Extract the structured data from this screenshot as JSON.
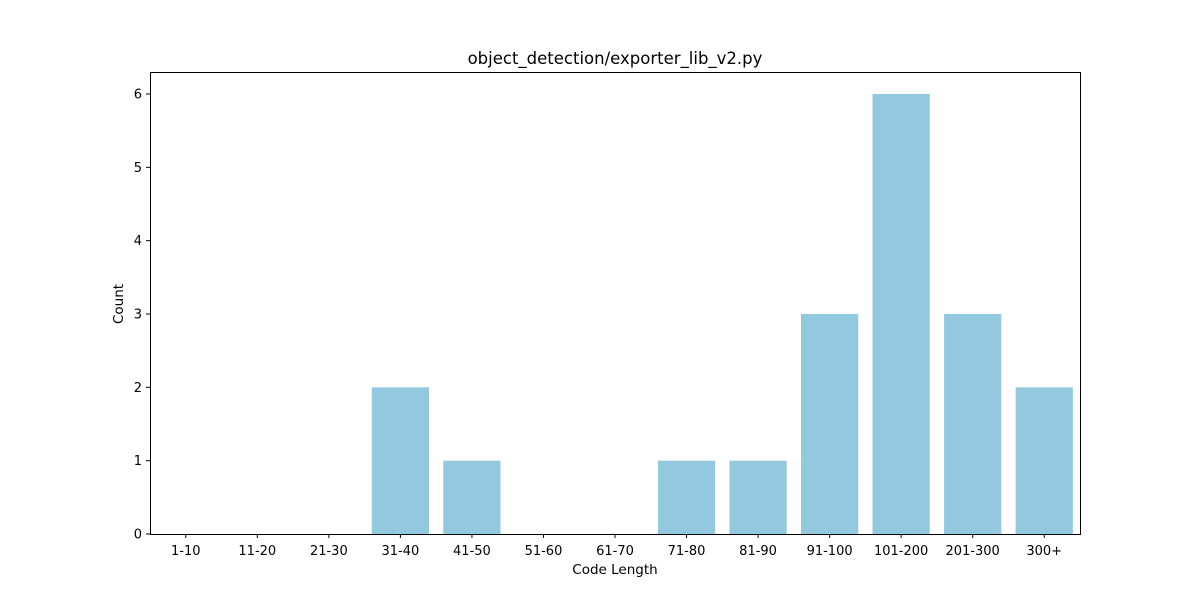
{
  "chart_data": {
    "type": "bar",
    "title": "object_detection/exporter_lib_v2.py",
    "xlabel": "Code Length",
    "ylabel": "Count",
    "categories": [
      "1-10",
      "11-20",
      "21-30",
      "31-40",
      "41-50",
      "51-60",
      "61-70",
      "71-80",
      "81-90",
      "91-100",
      "101-200",
      "201-300",
      "300+"
    ],
    "values": [
      0,
      0,
      0,
      2,
      1,
      0,
      0,
      1,
      1,
      3,
      6,
      3,
      2
    ],
    "ylim": [
      0,
      6.3
    ],
    "yticks": [
      0,
      1,
      2,
      3,
      4,
      5,
      6
    ],
    "bar_color": "#92c9df",
    "grid": false,
    "legend": "none"
  }
}
